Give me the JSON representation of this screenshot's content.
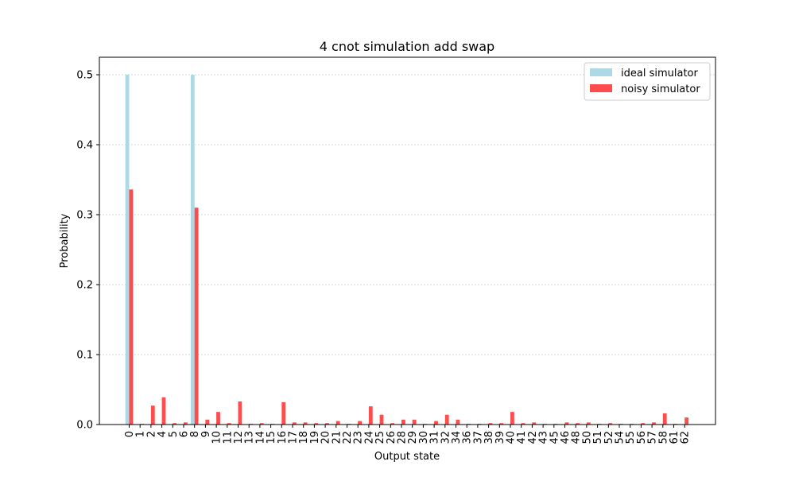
{
  "chart_data": {
    "type": "bar",
    "title": "4 cnot simulation add swap",
    "xlabel": "Output state",
    "ylabel": "Probability",
    "ylim": [
      0,
      0.525
    ],
    "yticks": [
      0.0,
      0.1,
      0.2,
      0.3,
      0.4,
      0.5
    ],
    "grid": "y",
    "legend_position": "top-right",
    "categories": [
      "0",
      "1",
      "2",
      "4",
      "5",
      "6",
      "8",
      "9",
      "10",
      "11",
      "12",
      "13",
      "14",
      "15",
      "16",
      "17",
      "18",
      "19",
      "20",
      "21",
      "22",
      "23",
      "24",
      "25",
      "26",
      "28",
      "29",
      "30",
      "31",
      "32",
      "34",
      "36",
      "37",
      "38",
      "39",
      "40",
      "41",
      "42",
      "43",
      "45",
      "46",
      "48",
      "50",
      "51",
      "52",
      "54",
      "55",
      "56",
      "57",
      "58",
      "61",
      "62"
    ],
    "series": [
      {
        "name": "ideal simulator",
        "color": "#add8e6",
        "values": [
          0.5,
          0,
          0,
          0,
          0,
          0,
          0.5,
          0,
          0,
          0,
          0,
          0,
          0,
          0,
          0,
          0,
          0,
          0,
          0,
          0,
          0,
          0,
          0,
          0,
          0,
          0,
          0,
          0,
          0,
          0,
          0,
          0,
          0,
          0,
          0,
          0,
          0,
          0,
          0,
          0,
          0,
          0,
          0,
          0,
          0,
          0,
          0,
          0,
          0,
          0,
          0,
          0
        ]
      },
      {
        "name": "noisy simulator",
        "color": "#ff4c4c",
        "values": [
          0.336,
          0.001,
          0.027,
          0.039,
          0.002,
          0.003,
          0.31,
          0.007,
          0.018,
          0.002,
          0.033,
          0.001,
          0.002,
          0.001,
          0.032,
          0.003,
          0.003,
          0.002,
          0.002,
          0.005,
          0.001,
          0.005,
          0.026,
          0.014,
          0.002,
          0.007,
          0.007,
          0.001,
          0.005,
          0.014,
          0.007,
          0.001,
          0.001,
          0.002,
          0.002,
          0.018,
          0.002,
          0.003,
          0.001,
          0.001,
          0.003,
          0.002,
          0.003,
          0.001,
          0.002,
          0.001,
          0.001,
          0.002,
          0.003,
          0.016,
          0.001,
          0.01
        ]
      }
    ]
  }
}
